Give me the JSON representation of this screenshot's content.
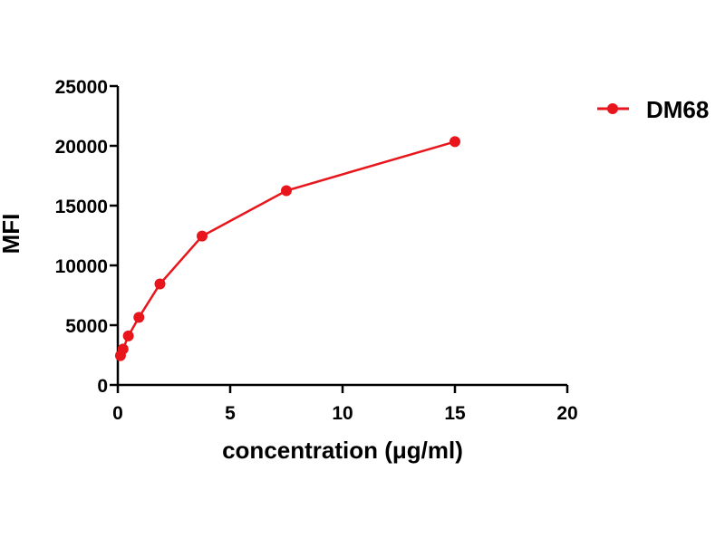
{
  "chart_data": {
    "type": "line",
    "title": "",
    "xlabel": "concentration (μg/ml)",
    "ylabel": "MFI",
    "xlim": [
      0,
      20
    ],
    "ylim": [
      0,
      25000
    ],
    "x_ticks": [
      0,
      5,
      10,
      15,
      20
    ],
    "y_ticks": [
      0,
      5000,
      10000,
      15000,
      20000,
      25000
    ],
    "x_tick_labels": [
      "0",
      "5",
      "10",
      "15",
      "20"
    ],
    "y_tick_labels": [
      "0",
      "5000",
      "10000",
      "15000",
      "20000",
      "25000"
    ],
    "grid": false,
    "legend_position": "top-right",
    "series": [
      {
        "name": "DM68",
        "color": "#e8161c",
        "marker": "circle",
        "x": [
          0.117,
          0.234,
          0.469,
          0.938,
          1.875,
          3.75,
          7.5,
          15
        ],
        "y": [
          2450,
          3000,
          4100,
          5650,
          8450,
          12450,
          16250,
          20350
        ]
      }
    ]
  }
}
